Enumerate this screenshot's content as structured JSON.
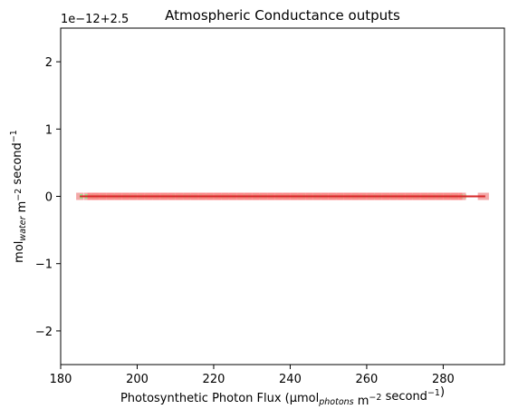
{
  "chart_data": {
    "type": "scatter",
    "title": "Atmospheric Conductance outputs",
    "offset_text": "1e−12+2.5",
    "xlabel": {
      "parts": [
        {
          "text": "Photosynthetic Photon Flux (µmol",
          "style": "normal"
        },
        {
          "text": "photons",
          "style": "sub"
        },
        {
          "text": " m",
          "style": "normal"
        },
        {
          "text": "−2",
          "style": "sup"
        },
        {
          "text": " second",
          "style": "normal"
        },
        {
          "text": "−1",
          "style": "sup"
        },
        {
          "text": ")",
          "style": "normal"
        }
      ]
    },
    "ylabel": {
      "parts": [
        {
          "text": "mol",
          "style": "normal"
        },
        {
          "text": "water",
          "style": "sub"
        },
        {
          "text": " m",
          "style": "normal"
        },
        {
          "text": "−2",
          "style": "sup"
        },
        {
          "text": " second",
          "style": "normal"
        },
        {
          "text": "−1",
          "style": "sup"
        }
      ]
    },
    "xlim": [
      180,
      296
    ],
    "ylim": [
      -2.5,
      2.5
    ],
    "xticks": [
      180,
      200,
      220,
      240,
      260,
      280
    ],
    "yticks": [
      -2,
      -1,
      0,
      1,
      2
    ],
    "ytick_labels": [
      "−2",
      "−1",
      "0",
      "1",
      "2"
    ],
    "grid": false,
    "series": [
      {
        "style": "scatter",
        "marker": "square",
        "color": "#f4a8a8",
        "x": [
          185,
          187,
          189,
          191,
          193,
          195,
          197,
          199,
          201,
          203,
          205,
          207,
          209,
          211,
          213,
          215,
          217,
          219,
          221,
          223,
          225,
          227,
          229,
          231,
          233,
          235,
          237,
          239,
          241,
          243,
          245,
          247,
          249,
          251,
          253,
          255,
          257,
          259,
          261,
          263,
          265,
          267,
          269,
          271,
          273,
          275,
          277,
          279,
          281,
          283,
          285,
          290,
          291
        ],
        "y_value": 0
      },
      {
        "style": "line",
        "color": "#90ee90",
        "dash": true,
        "x": [
          185,
          286
        ],
        "y": [
          0,
          0
        ]
      },
      {
        "style": "band",
        "color": "#ff8080",
        "x": [
          187,
          285
        ],
        "y": [
          0,
          0
        ]
      },
      {
        "style": "line",
        "color": "#d62728",
        "dash": false,
        "x": [
          185,
          291
        ],
        "y": [
          0,
          0
        ]
      }
    ]
  }
}
